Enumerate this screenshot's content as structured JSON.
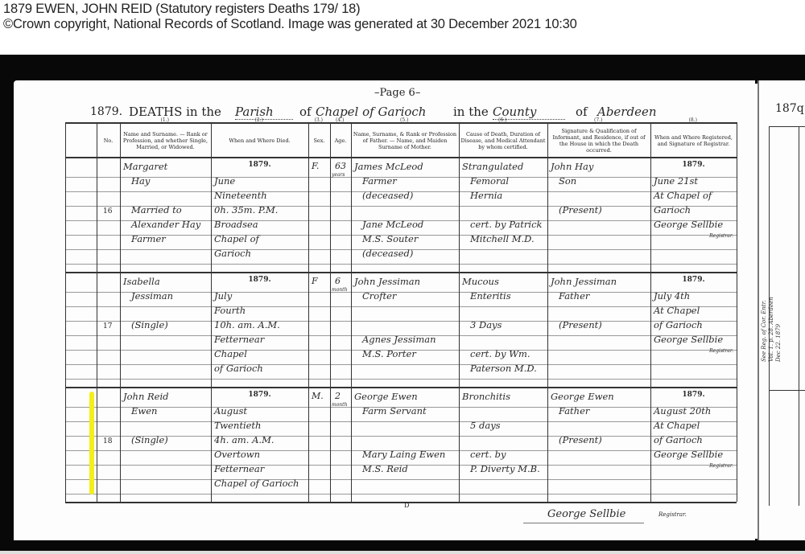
{
  "header": {
    "title": "1879 EWEN, JOHN REID (Statutory registers Deaths 179/   18)",
    "copyright": "©Crown copyright, National Records of Scotland. Image was generated at  30 December 2021 10:30"
  },
  "register": {
    "page": "–Page 6–",
    "year": "1879.",
    "deaths_in_the": "DEATHS in the",
    "parish_label": "Parish",
    "of1": "of",
    "parish_name": "Chapel of Garioch",
    "in_the": "in the",
    "county_label": "County",
    "of2": "of",
    "county_name": "Aberdeen",
    "right_page_year": "187q",
    "column_numbers": [
      "(1.)",
      "(2.)",
      "(3.)",
      "(4.)",
      "(5.)",
      "(6.)",
      "(7.)",
      "(8.)"
    ],
    "columns": [
      "No.",
      "Name and Surname. — Rank or Profession, and whether Single, Married, or Widowed.",
      "When and Where Died.",
      "Sex.",
      "Age.",
      "Name, Surname, & Rank or Profession of Father. — Name, and Maiden Surname of Mother.",
      "Cause of Death, Duration of Disease, and Medical Attendant by whom certified.",
      "Signature & Qualification of Informant, and Residence, if out of the House in which the Death occurred.",
      "When and Where Registered, and Signature of Registrar."
    ],
    "entries": [
      {
        "no": "16",
        "name": [
          "Margaret",
          "Hay",
          "",
          "Married to",
          "Alexander Hay",
          "Farmer"
        ],
        "died": [
          "1879.",
          "June",
          "Nineteenth",
          "0h. 35m. P.M.",
          "Broadsea",
          "Chapel of",
          "Garioch"
        ],
        "sex": "F.",
        "age": [
          "63",
          "years"
        ],
        "parents": [
          "James McLeod",
          "Farmer",
          "(deceased)",
          "",
          "Jane McLeod",
          "M.S. Souter",
          "(deceased)"
        ],
        "cause": [
          "Strangulated",
          "Femoral",
          "Hernia",
          "",
          "cert. by Patrick",
          "Mitchell M.D."
        ],
        "informant": [
          "John Hay",
          "Son",
          "",
          "(Present)"
        ],
        "registered": [
          "1879.",
          "June 21st",
          "At Chapel of",
          "Garioch",
          "George Sellbie",
          "Registrar."
        ]
      },
      {
        "no": "17",
        "name": [
          "Isabella",
          "Jessiman",
          "",
          "(Single)"
        ],
        "died": [
          "1879.",
          "July",
          "Fourth",
          "10h. am. A.M.",
          "Fetternear",
          "Chapel",
          "of Garioch"
        ],
        "sex": "F",
        "age": [
          "6",
          "month"
        ],
        "parents": [
          "John Jessiman",
          "Crofter",
          "",
          "",
          "Agnes Jessiman",
          "M.S. Porter"
        ],
        "cause": [
          "Mucous",
          "Enteritis",
          "",
          "3 Days",
          "",
          "cert. by Wm.",
          "Paterson M.D."
        ],
        "informant": [
          "John Jessiman",
          "Father",
          "",
          "(Present)"
        ],
        "registered": [
          "1879.",
          "July 4th",
          "At Chapel",
          "of Garioch",
          "George Sellbie",
          "Registrar."
        ]
      },
      {
        "no": "18",
        "name": [
          "John Reid",
          "Ewen",
          "",
          "(Single)"
        ],
        "died": [
          "1879.",
          "August",
          "Twentieth",
          "4h. am. A.M.",
          "Overtown",
          "Fetternear",
          "Chapel of Garioch"
        ],
        "sex": "M.",
        "age": [
          "2",
          "month"
        ],
        "parents": [
          "George Ewen",
          "Farm Servant",
          "",
          "",
          "Mary Laing Ewen",
          "M.S. Reid"
        ],
        "cause": [
          "Bronchitis",
          "",
          "5 days",
          "",
          "cert. by",
          "P. Diverty M.B."
        ],
        "informant": [
          "George Ewen",
          "Father",
          "",
          "(Present)"
        ],
        "registered": [
          "1879.",
          "August 20th",
          "At Chapel",
          "of Garioch",
          "George Sellbie",
          "Registrar."
        ]
      }
    ],
    "footer_mark": "D",
    "registrar_signature": "George Sellbie",
    "registrar_label": "Registrar.",
    "margin_note": [
      "See Reg. of Cor. Entr.",
      "Vol. 1. p. 28. Aberdeen",
      "Dec 22. 1879"
    ],
    "highlight_color": "#f4ef1a"
  }
}
